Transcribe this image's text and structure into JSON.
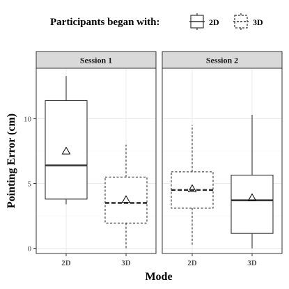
{
  "chart_data": {
    "type": "boxplot",
    "legend": {
      "title": "Participants began with:",
      "position": "top",
      "items": [
        {
          "label": "2D",
          "linetype": "solid"
        },
        {
          "label": "3D",
          "linetype": "dashed"
        }
      ]
    },
    "xlabel": "Mode",
    "ylabel": "Pointing Error (cm)",
    "ylim": [
      -0.4,
      13.9
    ],
    "yticks": [
      0,
      5,
      10
    ],
    "categories": [
      "2D",
      "3D"
    ],
    "grid": true,
    "panels": [
      {
        "title": "Session 1",
        "boxes": [
          {
            "category": "2D",
            "group": "2D",
            "min": 3.4,
            "q1": 3.8,
            "median": 6.4,
            "q3": 11.4,
            "max": 13.3,
            "mean": 7.5
          },
          {
            "category": "3D",
            "group": "3D",
            "min": 0.0,
            "q1": 1.95,
            "median": 3.5,
            "q3": 5.5,
            "max": 8.0,
            "mean": 3.75
          }
        ]
      },
      {
        "title": "Session 2",
        "boxes": [
          {
            "category": "2D",
            "group": "3D",
            "min": 0.2,
            "q1": 3.1,
            "median": 4.5,
            "q3": 5.9,
            "max": 9.5,
            "mean": 4.6
          },
          {
            "category": "3D",
            "group": "2D",
            "min": 0.0,
            "q1": 1.15,
            "median": 3.7,
            "q3": 5.65,
            "max": 10.3,
            "mean": 3.9
          }
        ]
      }
    ]
  }
}
